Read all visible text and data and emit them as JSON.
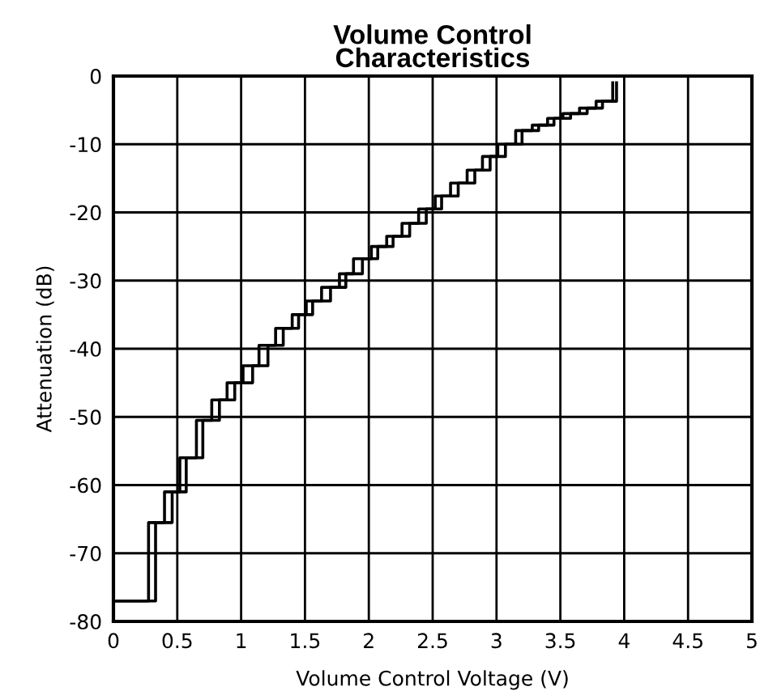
{
  "chart_data": {
    "type": "step",
    "title": "Volume Control\nCharacteristics",
    "xlabel": "Volume Control Voltage (V)",
    "ylabel": "Attenuation (dB)",
    "series": [
      {
        "color": "#000000",
        "x": [
          0,
          0.275,
          0.4,
          0.52,
          0.65,
          0.77,
          0.89,
          1.015,
          1.14,
          1.27,
          1.4,
          1.51,
          1.63,
          1.77,
          1.88,
          2.02,
          2.14,
          2.26,
          2.39,
          2.52,
          2.64,
          2.77,
          2.89,
          3.01,
          3.15,
          3.28,
          3.4,
          3.52,
          3.65,
          3.78,
          3.91
        ],
        "values": [
          -77,
          -65.5,
          -61,
          -56,
          -50.5,
          -47.5,
          -45,
          -42.5,
          -39.5,
          -37,
          -35,
          -33,
          -31,
          -29,
          -26.8,
          -25,
          -23.5,
          -21.6,
          -19.5,
          -17.6,
          -15.7,
          -13.8,
          -11.8,
          -10,
          -8,
          -7.2,
          -6.2,
          -5.5,
          -4.7,
          -3.7,
          -1
        ]
      },
      {
        "color": "#000000",
        "x": [
          0,
          0.33,
          0.46,
          0.57,
          0.7,
          0.83,
          0.95,
          1.09,
          1.21,
          1.33,
          1.45,
          1.56,
          1.7,
          1.82,
          1.95,
          2.07,
          2.19,
          2.32,
          2.45,
          2.57,
          2.7,
          2.83,
          2.95,
          3.07,
          3.2,
          3.33,
          3.45,
          3.58,
          3.71,
          3.83,
          3.94
        ],
        "values": [
          -77,
          -65.5,
          -61,
          -56,
          -50.5,
          -47.5,
          -45,
          -42.5,
          -39.5,
          -37,
          -35,
          -33,
          -31,
          -29,
          -26.8,
          -25,
          -23.5,
          -21.6,
          -19.5,
          -17.6,
          -15.7,
          -13.8,
          -11.8,
          -10,
          -8,
          -7.2,
          -6.2,
          -5.5,
          -4.7,
          -3.7,
          -1
        ]
      }
    ],
    "xlim": [
      0,
      5
    ],
    "ylim": [
      -80,
      0
    ],
    "xticks": [
      0,
      0.5,
      1,
      1.5,
      2,
      2.5,
      3,
      3.5,
      4,
      4.5,
      5
    ],
    "yticks": [
      0,
      -10,
      -20,
      -30,
      -40,
      -50,
      -60,
      -70,
      -80
    ],
    "grid": true
  }
}
